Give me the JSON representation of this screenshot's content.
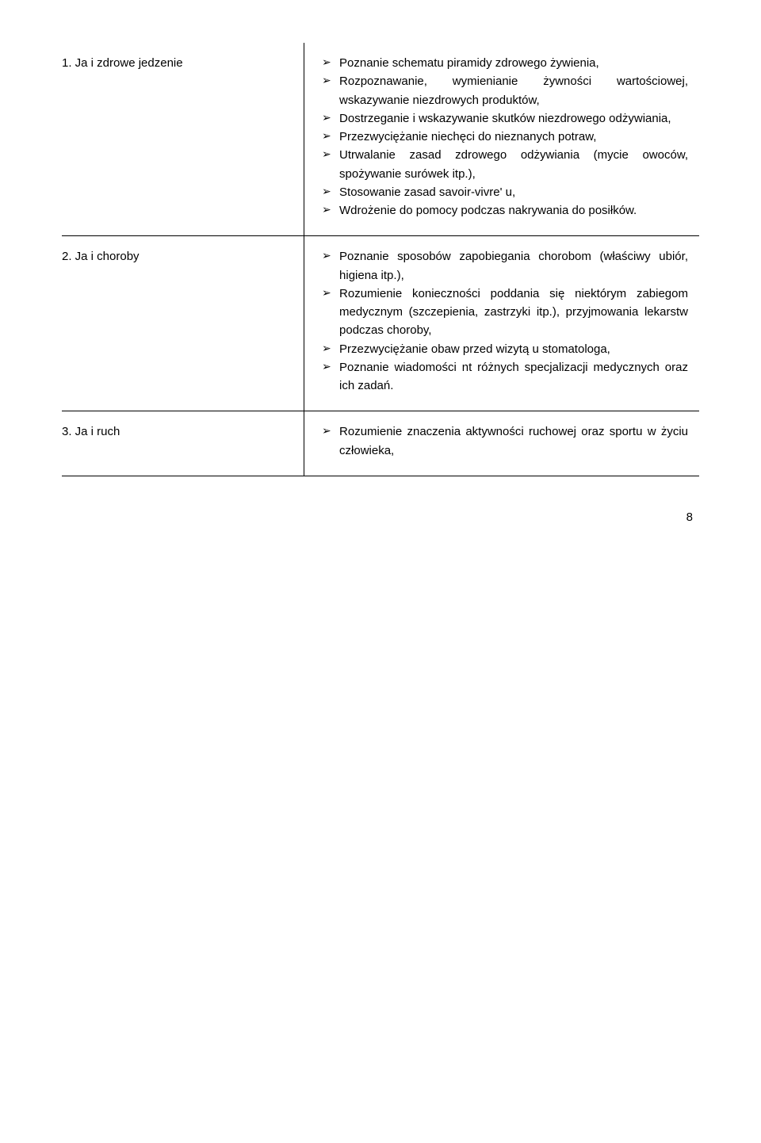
{
  "marker_color": "#000000",
  "text_color": "#000000",
  "sections": [
    {
      "title": "1. Ja i zdrowe jedzenie",
      "items": [
        "Poznanie schematu piramidy zdrowego żywienia,",
        "Rozpoznawanie, wymienianie żywności wartościowej, wskazywanie niezdrowych produktów,",
        "Dostrzeganie i wskazywanie skutków niezdrowego odżywiania,",
        "Przezwyciężanie niechęci do nieznanych potraw,",
        "Utrwalanie zasad zdrowego odżywiania (mycie owoców, spożywanie surówek itp.),",
        "Stosowanie zasad savoir-vivre' u,",
        "Wdrożenie do pomocy podczas nakrywania do posiłków."
      ]
    },
    {
      "title": "2. Ja i choroby",
      "items": [
        "Poznanie sposobów zapobiegania chorobom (właściwy ubiór, higiena itp.),",
        "Rozumienie konieczności poddania się niektórym zabiegom medycznym (szczepienia, zastrzyki itp.), przyjmowania lekarstw podczas choroby,",
        "Przezwyciężanie obaw przed wizytą u stomatologa,",
        "Poznanie wiadomości nt różnych specjalizacji medycznych oraz ich zadań."
      ]
    },
    {
      "title": "3. Ja i ruch",
      "items": [
        "Rozumienie znaczenia aktywności ruchowej oraz sportu w życiu człowieka,"
      ]
    }
  ],
  "page_number": "8"
}
